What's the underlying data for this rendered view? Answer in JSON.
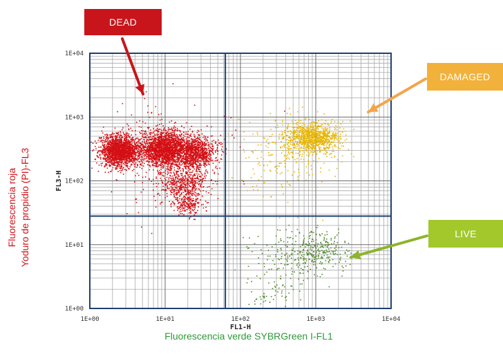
{
  "chart_data": {
    "type": "scatter",
    "title": "",
    "xlabel": "FL1-H",
    "ylabel": "FL3-H",
    "x_title": "Fluorescencia verde  SYBRGreen I-FL1",
    "y_title_line1": "Fluorescencia roja",
    "y_title_line2": "Yoduro de propidio (PI)-FL3",
    "x_scale": "log",
    "y_scale": "log",
    "xlim": [
      1,
      10000
    ],
    "ylim": [
      1,
      10000
    ],
    "x_ticks": [
      "1E+00",
      "1E+01",
      "1E+02",
      "1E+03",
      "1E+04"
    ],
    "y_ticks": [
      "1E+00",
      "1E+01",
      "1E+02",
      "1E+03",
      "1E+04"
    ],
    "grid": true,
    "quadrant_gates": {
      "x": 63,
      "y": 28
    },
    "series": [
      {
        "name": "DEAD",
        "color": "#d40f14",
        "clusters": [
          {
            "x": 2.5,
            "y": 300,
            "sx": 0.13,
            "sy": 0.12,
            "n": 1800
          },
          {
            "x": 10,
            "y": 320,
            "sx": 0.17,
            "sy": 0.14,
            "n": 2000
          },
          {
            "x": 25,
            "y": 280,
            "sx": 0.14,
            "sy": 0.13,
            "n": 900
          },
          {
            "x": 18,
            "y": 90,
            "sx": 0.16,
            "sy": 0.14,
            "n": 500
          },
          {
            "x": 20,
            "y": 45,
            "sx": 0.1,
            "sy": 0.1,
            "n": 180
          },
          {
            "x": 8,
            "y": 250,
            "sx": 0.5,
            "sy": 0.4,
            "n": 200
          }
        ]
      },
      {
        "name": "DAMAGED",
        "color": "#e8b500",
        "clusters": [
          {
            "x": 900,
            "y": 480,
            "sx": 0.18,
            "sy": 0.12,
            "n": 900
          },
          {
            "x": 500,
            "y": 350,
            "sx": 0.3,
            "sy": 0.25,
            "n": 200
          },
          {
            "x": 300,
            "y": 120,
            "sx": 0.3,
            "sy": 0.3,
            "n": 60
          }
        ]
      },
      {
        "name": "LIVE",
        "color": "#4f8a2c",
        "clusters": [
          {
            "x": 1000,
            "y": 8,
            "sx": 0.2,
            "sy": 0.15,
            "n": 300
          },
          {
            "x": 350,
            "y": 5,
            "sx": 0.25,
            "sy": 0.3,
            "n": 100
          },
          {
            "x": 250,
            "y": 2,
            "sx": 0.15,
            "sy": 0.15,
            "n": 40
          }
        ]
      }
    ]
  },
  "annotations": [
    {
      "label": "DEAD",
      "color": "#c8151b",
      "arrow_color": "#c8151b"
    },
    {
      "label": "DAMAGED",
      "color": "#f2b13a",
      "arrow_color": "#f2a54a"
    },
    {
      "label": "LIVE",
      "color": "#a3c82c",
      "arrow_color": "#8db42a"
    }
  ]
}
